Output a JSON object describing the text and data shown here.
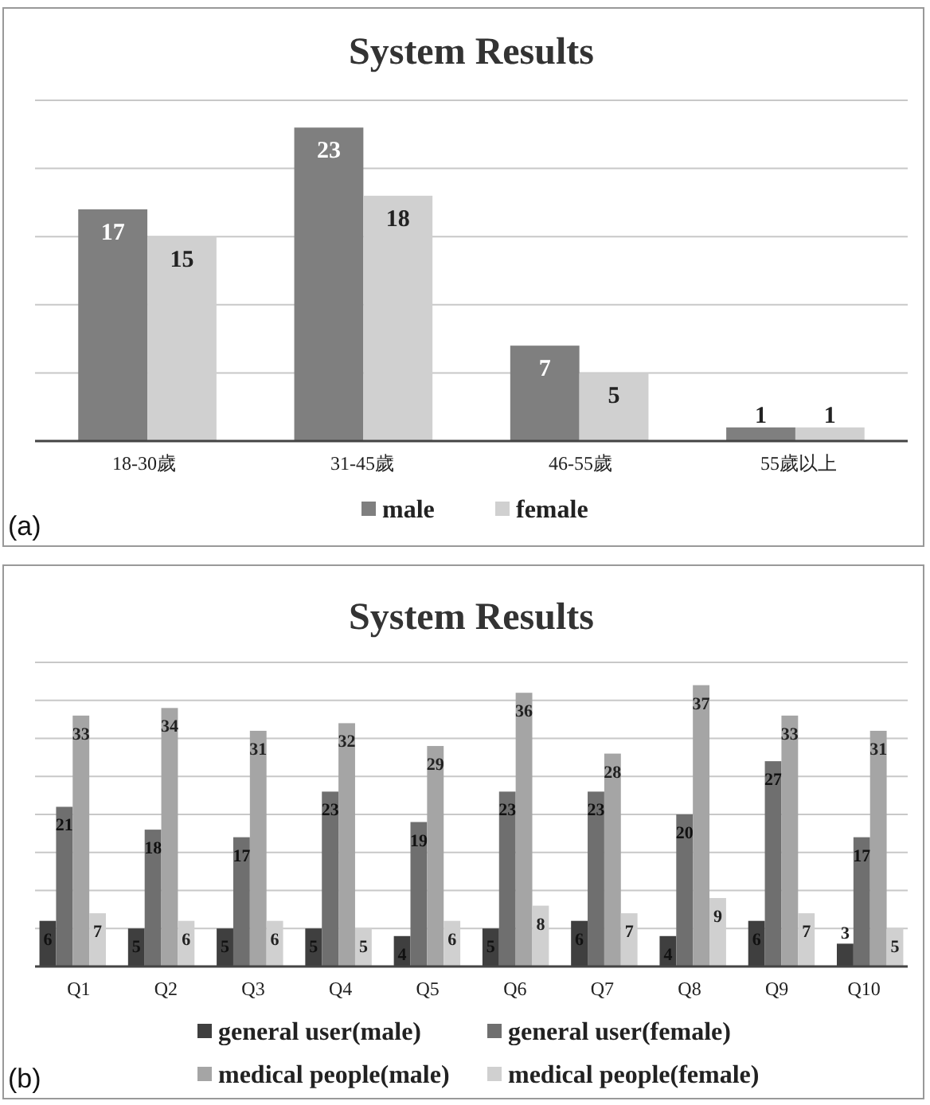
{
  "chart_data": [
    {
      "type": "bar",
      "title": "System Results",
      "categories": [
        "18-30歲",
        "31-45歲",
        "46-55歲",
        "55歲以上"
      ],
      "series": [
        {
          "name": "male",
          "color": "#7f7f7f",
          "values": [
            17,
            23,
            7,
            1
          ]
        },
        {
          "name": "female",
          "color": "#d0d0d0",
          "values": [
            15,
            18,
            5,
            1
          ]
        }
      ],
      "ylim": [
        0,
        25
      ],
      "yticks": [
        {
          "value": 0,
          "label": null
        },
        {
          "value": 5,
          "label": null
        },
        {
          "value": 10,
          "label": null
        },
        {
          "value": 15,
          "label": null
        },
        {
          "value": 20,
          "label": null
        },
        {
          "value": 25,
          "label": null
        }
      ],
      "tick_labels": "x",
      "grid": "y",
      "legend": "bottom",
      "data_labels": true,
      "annotations": [
        "(a)"
      ]
    },
    {
      "type": "bar",
      "title": "System Results",
      "categories": [
        "Q1",
        "Q2",
        "Q3",
        "Q4",
        "Q5",
        "Q6",
        "Q7",
        "Q8",
        "Q9",
        "Q10"
      ],
      "series": [
        {
          "name": "general user(male)",
          "color": "#3f3f3f",
          "values": [
            6,
            5,
            5,
            5,
            4,
            5,
            6,
            4,
            6,
            3
          ]
        },
        {
          "name": "general user(female)",
          "color": "#6f6f6f",
          "values": [
            21,
            18,
            17,
            23,
            19,
            23,
            23,
            20,
            27,
            17
          ]
        },
        {
          "name": "medical people(male)",
          "color": "#a5a5a5",
          "values": [
            33,
            34,
            31,
            32,
            29,
            36,
            28,
            37,
            33,
            31
          ]
        },
        {
          "name": "medical people(female)",
          "color": "#d0d0d0",
          "values": [
            7,
            6,
            6,
            5,
            6,
            8,
            7,
            9,
            7,
            5
          ]
        }
      ],
      "ylim": [
        0,
        40
      ],
      "yticks": [
        {
          "value": 0,
          "label": null
        },
        {
          "value": 5,
          "label": null
        },
        {
          "value": 10,
          "label": null
        },
        {
          "value": 15,
          "label": null
        },
        {
          "value": 20,
          "label": null
        },
        {
          "value": 25,
          "label": null
        },
        {
          "value": 30,
          "label": null
        },
        {
          "value": 35,
          "label": null
        },
        {
          "value": 40,
          "label": null
        }
      ],
      "tick_labels": "x",
      "grid": "y",
      "legend": "bottom",
      "data_labels": true,
      "annotations": [
        "(b)"
      ]
    }
  ]
}
